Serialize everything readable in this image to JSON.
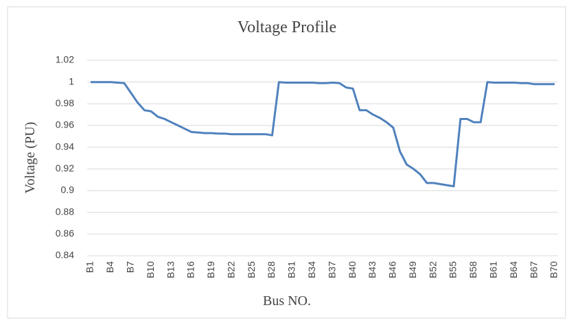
{
  "chart_data": {
    "type": "line",
    "title": "Voltage Profile",
    "x_label": "Bus NO.",
    "y_label": "Voltage (PU)",
    "categories": [
      "B1",
      null,
      null,
      "B4",
      null,
      null,
      "B7",
      null,
      null,
      "B10",
      null,
      null,
      "B13",
      null,
      null,
      "B16",
      null,
      null,
      "B19",
      null,
      null,
      "B22",
      null,
      null,
      "B25",
      null,
      null,
      "B28",
      null,
      null,
      "B31",
      null,
      null,
      "B34",
      null,
      null,
      "B37",
      null,
      null,
      "B40",
      null,
      null,
      "B43",
      null,
      null,
      "B46",
      null,
      null,
      "B49",
      null,
      null,
      "B52",
      null,
      null,
      "B55",
      null,
      null,
      "B58",
      null,
      null,
      "B61",
      null,
      null,
      "B64",
      null,
      null,
      "B67",
      null,
      null,
      "B70"
    ],
    "series": [
      {
        "name": "Voltage",
        "color": "#4f81bd",
        "values": [
          1.0,
          1.0,
          1.0,
          1.0,
          0.9995,
          0.999,
          0.99,
          0.981,
          0.974,
          0.973,
          0.968,
          0.966,
          0.963,
          0.96,
          0.957,
          0.954,
          0.9535,
          0.953,
          0.953,
          0.9525,
          0.9525,
          0.952,
          0.952,
          0.952,
          0.952,
          0.952,
          0.952,
          0.951,
          1.0,
          0.9995,
          0.9995,
          0.9995,
          0.9995,
          0.9995,
          0.999,
          0.999,
          0.9995,
          0.999,
          0.995,
          0.994,
          0.974,
          0.974,
          0.97,
          0.967,
          0.963,
          0.958,
          0.936,
          0.924,
          0.92,
          0.915,
          0.907,
          0.907,
          0.906,
          0.905,
          0.904,
          0.966,
          0.966,
          0.963,
          0.963,
          1.0,
          0.9995,
          0.9995,
          0.9995,
          0.9995,
          0.999,
          0.999,
          0.998,
          0.998,
          0.998,
          0.998
        ]
      }
    ],
    "ylim": [
      0.84,
      1.02
    ],
    "yticks": [
      0.84,
      0.86,
      0.88,
      0.9,
      0.92,
      0.94,
      0.96,
      0.98,
      1,
      1.02
    ],
    "grid": true
  }
}
